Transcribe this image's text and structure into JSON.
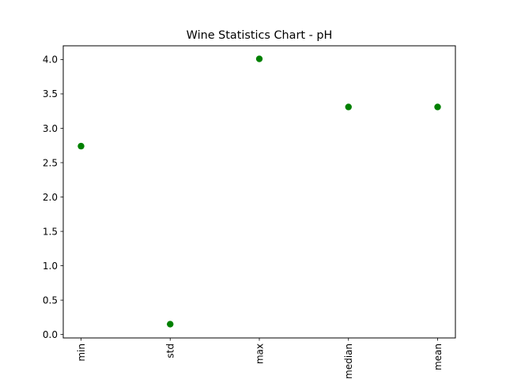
{
  "chart_data": {
    "type": "scatter",
    "title": "Wine Statistics Chart - pH",
    "categories": [
      "min",
      "std",
      "max",
      "median",
      "mean"
    ],
    "series": [
      {
        "values": [
          2.74,
          0.15,
          4.01,
          3.31,
          3.31
        ],
        "color": "#008000"
      }
    ],
    "xlabel": "",
    "ylabel": "",
    "ylim": [
      -0.05,
      4.2
    ],
    "yticks": [
      0.0,
      0.5,
      1.0,
      1.5,
      2.0,
      2.5,
      3.0,
      3.5,
      4.0
    ],
    "ytick_labels": [
      "0.0",
      "0.5",
      "1.0",
      "1.5",
      "2.0",
      "2.5",
      "3.0",
      "3.5",
      "4.0"
    ],
    "grid": false,
    "xtick_rotation": "vertical"
  }
}
